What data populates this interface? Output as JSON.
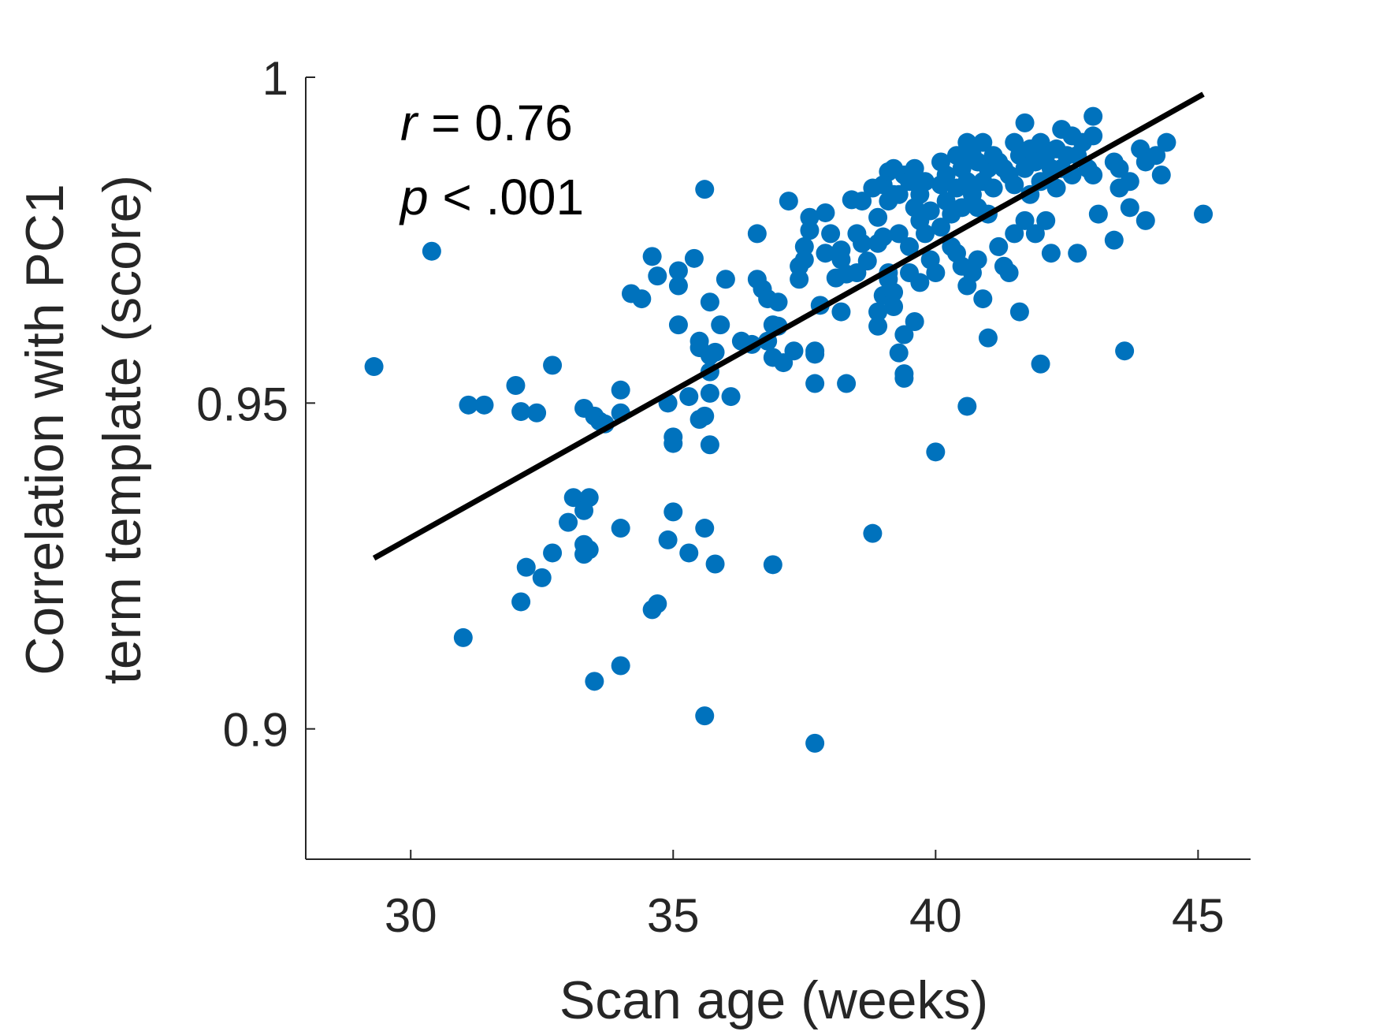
{
  "chart_data": {
    "type": "scatter",
    "xlabel": "Scan age (weeks)",
    "ylabel": [
      "Correlation with PC1",
      "term template (score)"
    ],
    "xlim": [
      28,
      46
    ],
    "ylim": [
      0.88,
      1.0
    ],
    "xticks": [
      30,
      35,
      40,
      45
    ],
    "yticks": [
      0.9,
      0.95,
      1.0
    ],
    "xtick_labels": [
      "30",
      "35",
      "40",
      "45"
    ],
    "ytick_labels": [
      "0.9",
      "0.95",
      "1"
    ],
    "grid": false,
    "marker_color": "#0072BD",
    "line_color": "#000000",
    "annotation": {
      "r_symbol": "r",
      "r_text": " = 0.76",
      "p_symbol": "p",
      "p_text": " < .001"
    },
    "fit_line": {
      "x": [
        29.3,
        45.1
      ],
      "y": [
        0.9262,
        0.9974
      ]
    },
    "points": [
      [
        29.3,
        0.9556
      ],
      [
        30.4,
        0.9733
      ],
      [
        31.1,
        0.9497
      ],
      [
        31.4,
        0.9497
      ],
      [
        31.0,
        0.914
      ],
      [
        32.0,
        0.9527
      ],
      [
        32.1,
        0.9487
      ],
      [
        32.4,
        0.9485
      ],
      [
        32.2,
        0.9248
      ],
      [
        32.5,
        0.9232
      ],
      [
        32.1,
        0.9195
      ],
      [
        32.7,
        0.927
      ],
      [
        32.7,
        0.9558
      ],
      [
        33.0,
        0.9317
      ],
      [
        33.1,
        0.9355
      ],
      [
        33.3,
        0.9335
      ],
      [
        33.4,
        0.9355
      ],
      [
        33.3,
        0.9283
      ],
      [
        33.3,
        0.9268
      ],
      [
        33.4,
        0.9275
      ],
      [
        33.3,
        0.9492
      ],
      [
        33.5,
        0.948
      ],
      [
        33.6,
        0.9472
      ],
      [
        33.7,
        0.9468
      ],
      [
        34.0,
        0.952
      ],
      [
        34.0,
        0.9485
      ],
      [
        34.0,
        0.9308
      ],
      [
        33.5,
        0.9073
      ],
      [
        34.0,
        0.9097
      ],
      [
        34.2,
        0.9668
      ],
      [
        34.4,
        0.966
      ],
      [
        34.6,
        0.9725
      ],
      [
        34.7,
        0.9695
      ],
      [
        34.6,
        0.9183
      ],
      [
        34.7,
        0.9192
      ],
      [
        34.9,
        0.95
      ],
      [
        34.9,
        0.929
      ],
      [
        35.0,
        0.9448
      ],
      [
        35.0,
        0.9438
      ],
      [
        35.0,
        0.9333
      ],
      [
        35.1,
        0.9703
      ],
      [
        35.1,
        0.968
      ],
      [
        35.1,
        0.962
      ],
      [
        35.3,
        0.951
      ],
      [
        35.3,
        0.927
      ],
      [
        35.4,
        0.9722
      ],
      [
        35.5,
        0.9595
      ],
      [
        35.5,
        0.9585
      ],
      [
        35.5,
        0.9475
      ],
      [
        35.6,
        0.9828
      ],
      [
        35.6,
        0.948
      ],
      [
        35.6,
        0.9308
      ],
      [
        35.6,
        0.902
      ],
      [
        35.7,
        0.9655
      ],
      [
        35.7,
        0.9573
      ],
      [
        35.7,
        0.9548
      ],
      [
        35.7,
        0.9515
      ],
      [
        35.7,
        0.9436
      ],
      [
        35.8,
        0.9578
      ],
      [
        35.8,
        0.9253
      ],
      [
        35.9,
        0.962
      ],
      [
        36.0,
        0.969
      ],
      [
        36.1,
        0.951
      ],
      [
        36.3,
        0.9595
      ],
      [
        36.5,
        0.959
      ],
      [
        36.6,
        0.976
      ],
      [
        36.6,
        0.969
      ],
      [
        36.7,
        0.9675
      ],
      [
        36.8,
        0.966
      ],
      [
        36.8,
        0.9595
      ],
      [
        36.9,
        0.962
      ],
      [
        36.9,
        0.957
      ],
      [
        36.9,
        0.9252
      ],
      [
        37.0,
        0.9618
      ],
      [
        37.0,
        0.9655
      ],
      [
        37.1,
        0.9562
      ],
      [
        37.2,
        0.981
      ],
      [
        37.3,
        0.958
      ],
      [
        37.4,
        0.971
      ],
      [
        37.4,
        0.969
      ],
      [
        37.5,
        0.974
      ],
      [
        37.5,
        0.972
      ],
      [
        37.6,
        0.9765
      ],
      [
        37.6,
        0.9785
      ],
      [
        37.7,
        0.953
      ],
      [
        37.7,
        0.958
      ],
      [
        37.7,
        0.9575
      ],
      [
        37.7,
        0.8978
      ],
      [
        37.9,
        0.973
      ],
      [
        37.9,
        0.9792
      ],
      [
        37.8,
        0.965
      ],
      [
        38.0,
        0.976
      ],
      [
        38.2,
        0.964
      ],
      [
        38.1,
        0.9692
      ],
      [
        38.2,
        0.9735
      ],
      [
        38.2,
        0.972
      ],
      [
        38.3,
        0.9698
      ],
      [
        38.3,
        0.953
      ],
      [
        38.4,
        0.9812
      ],
      [
        38.5,
        0.97
      ],
      [
        38.5,
        0.976
      ],
      [
        38.6,
        0.9745
      ],
      [
        38.6,
        0.981
      ],
      [
        38.7,
        0.9718
      ],
      [
        38.8,
        0.93
      ],
      [
        38.8,
        0.983
      ],
      [
        38.9,
        0.964
      ],
      [
        38.9,
        0.9618
      ],
      [
        38.9,
        0.9785
      ],
      [
        38.9,
        0.9745
      ],
      [
        39.0,
        0.9835
      ],
      [
        39.0,
        0.9755
      ],
      [
        39.0,
        0.9665
      ],
      [
        39.1,
        0.9855
      ],
      [
        39.1,
        0.981
      ],
      [
        39.1,
        0.969
      ],
      [
        39.1,
        0.97
      ],
      [
        39.2,
        0.986
      ],
      [
        39.2,
        0.982
      ],
      [
        39.2,
        0.967
      ],
      [
        39.2,
        0.9648
      ],
      [
        39.3,
        0.982
      ],
      [
        39.3,
        0.976
      ],
      [
        39.3,
        0.9577
      ],
      [
        39.4,
        0.985
      ],
      [
        39.4,
        0.9605
      ],
      [
        39.4,
        0.9545
      ],
      [
        39.4,
        0.9538
      ],
      [
        39.5,
        0.984
      ],
      [
        39.5,
        0.974
      ],
      [
        39.5,
        0.97
      ],
      [
        39.6,
        0.986
      ],
      [
        39.6,
        0.98
      ],
      [
        39.6,
        0.9625
      ],
      [
        39.7,
        0.982
      ],
      [
        39.7,
        0.978
      ],
      [
        39.7,
        0.9685
      ],
      [
        39.8,
        0.984
      ],
      [
        39.8,
        0.976
      ],
      [
        39.9,
        0.9795
      ],
      [
        39.9,
        0.972
      ],
      [
        40.0,
        0.97
      ],
      [
        40.0,
        0.9425
      ],
      [
        40.1,
        0.987
      ],
      [
        40.1,
        0.9835
      ],
      [
        40.1,
        0.977
      ],
      [
        40.2,
        0.981
      ],
      [
        40.2,
        0.985
      ],
      [
        40.3,
        0.979
      ],
      [
        40.3,
        0.974
      ],
      [
        40.4,
        0.988
      ],
      [
        40.4,
        0.983
      ],
      [
        40.4,
        0.973
      ],
      [
        40.5,
        0.986
      ],
      [
        40.5,
        0.98
      ],
      [
        40.5,
        0.971
      ],
      [
        40.6,
        0.99
      ],
      [
        40.6,
        0.984
      ],
      [
        40.6,
        0.968
      ],
      [
        40.6,
        0.9495
      ],
      [
        40.7,
        0.988
      ],
      [
        40.7,
        0.982
      ],
      [
        40.7,
        0.97
      ],
      [
        40.8,
        0.987
      ],
      [
        40.8,
        0.98
      ],
      [
        40.8,
        0.972
      ],
      [
        40.9,
        0.99
      ],
      [
        40.9,
        0.984
      ],
      [
        40.9,
        0.966
      ],
      [
        41.0,
        0.986
      ],
      [
        41.0,
        0.979
      ],
      [
        41.0,
        0.96
      ],
      [
        41.1,
        0.988
      ],
      [
        41.1,
        0.983
      ],
      [
        41.2,
        0.987
      ],
      [
        41.2,
        0.974
      ],
      [
        41.3,
        0.986
      ],
      [
        41.3,
        0.971
      ],
      [
        41.4,
        0.985
      ],
      [
        41.4,
        0.97
      ],
      [
        41.5,
        0.99
      ],
      [
        41.5,
        0.9835
      ],
      [
        41.5,
        0.976
      ],
      [
        41.6,
        0.988
      ],
      [
        41.6,
        0.964
      ],
      [
        41.7,
        0.993
      ],
      [
        41.7,
        0.986
      ],
      [
        41.7,
        0.978
      ],
      [
        41.8,
        0.989
      ],
      [
        41.8,
        0.982
      ],
      [
        41.9,
        0.987
      ],
      [
        41.9,
        0.976
      ],
      [
        42.0,
        0.99
      ],
      [
        42.0,
        0.984
      ],
      [
        42.0,
        0.956
      ],
      [
        42.1,
        0.988
      ],
      [
        42.1,
        0.978
      ],
      [
        42.2,
        0.986
      ],
      [
        42.2,
        0.973
      ],
      [
        42.3,
        0.989
      ],
      [
        42.3,
        0.983
      ],
      [
        42.4,
        0.992
      ],
      [
        42.4,
        0.986
      ],
      [
        42.5,
        0.988
      ],
      [
        42.6,
        0.991
      ],
      [
        42.6,
        0.985
      ],
      [
        42.7,
        0.988
      ],
      [
        42.7,
        0.973
      ],
      [
        42.8,
        0.99
      ],
      [
        42.9,
        0.986
      ],
      [
        43.0,
        0.994
      ],
      [
        43.0,
        0.991
      ],
      [
        43.0,
        0.985
      ],
      [
        43.1,
        0.979
      ],
      [
        43.4,
        0.987
      ],
      [
        43.4,
        0.975
      ],
      [
        43.5,
        0.986
      ],
      [
        43.5,
        0.983
      ],
      [
        43.6,
        0.958
      ],
      [
        43.7,
        0.984
      ],
      [
        43.7,
        0.98
      ],
      [
        43.9,
        0.989
      ],
      [
        44.0,
        0.987
      ],
      [
        44.0,
        0.978
      ],
      [
        44.2,
        0.988
      ],
      [
        44.3,
        0.985
      ],
      [
        44.4,
        0.99
      ],
      [
        45.1,
        0.979
      ]
    ]
  }
}
